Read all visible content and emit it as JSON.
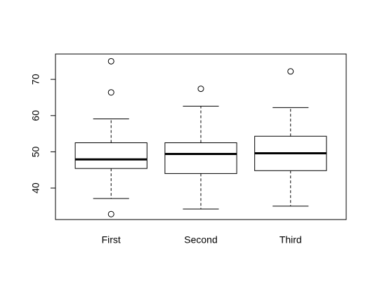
{
  "chart_data": {
    "type": "boxplot",
    "categories": [
      "First",
      "Second",
      "Third"
    ],
    "boxes": [
      {
        "whisker_low": 37.1,
        "q1": 45.4,
        "median": 47.9,
        "q3": 52.5,
        "whisker_high": 59.1,
        "outliers": [
          75,
          66.4,
          32.8
        ]
      },
      {
        "whisker_low": 34.2,
        "q1": 44.0,
        "median": 49.4,
        "q3": 52.5,
        "whisker_high": 62.6,
        "outliers": [
          67.4
        ]
      },
      {
        "whisker_low": 35.0,
        "q1": 44.8,
        "median": 49.6,
        "q3": 54.3,
        "whisker_high": 62.2,
        "outliers": [
          72.2
        ]
      }
    ],
    "ylim": [
      31.3,
      77
    ],
    "yticks": [
      40,
      50,
      60,
      70
    ]
  }
}
